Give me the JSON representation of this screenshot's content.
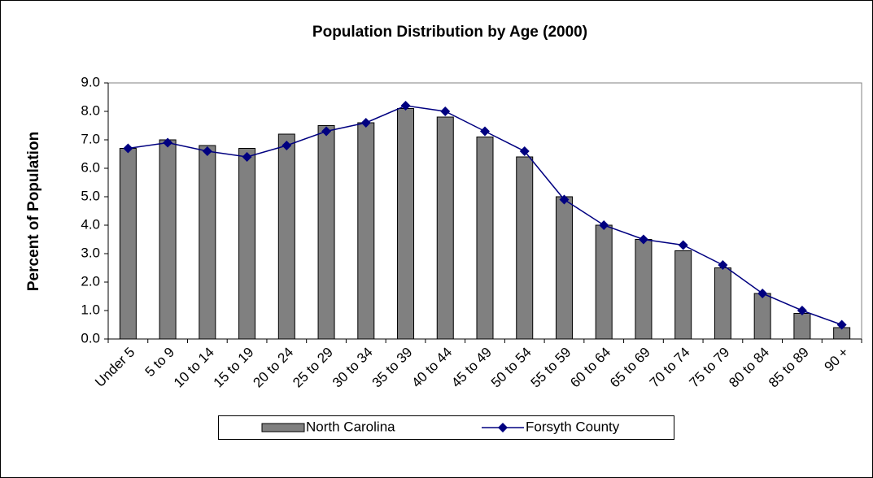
{
  "chart_data": {
    "type": "bar_line",
    "title": "Population Distribution by Age (2000)",
    "y_label": "Percent of Population",
    "categories": [
      "Under 5",
      "5 to 9",
      "10 to 14",
      "15 to 19",
      "20 to 24",
      "25 to 29",
      "30 to 34",
      "35 to 39",
      "40 to 44",
      "45 to 49",
      "50 to 54",
      "55 to 59",
      "60 to 64",
      "65 to 69",
      "70 to 74",
      "75 to 79",
      "80 to 84",
      "85 to 89",
      "90 +"
    ],
    "series": [
      {
        "name": "North Carolina",
        "type": "bar",
        "color": "#808080",
        "values": [
          6.7,
          7.0,
          6.8,
          6.7,
          7.2,
          7.5,
          7.6,
          8.1,
          7.8,
          7.1,
          6.4,
          5.0,
          4.0,
          3.5,
          3.1,
          2.5,
          1.6,
          0.9,
          0.4
        ]
      },
      {
        "name": "Forsyth County",
        "type": "line",
        "color": "#000080",
        "values": [
          6.7,
          6.9,
          6.6,
          6.4,
          6.8,
          7.3,
          7.6,
          8.2,
          8.0,
          7.3,
          6.6,
          4.9,
          4.0,
          3.5,
          3.3,
          2.6,
          1.6,
          1.0,
          0.5
        ]
      }
    ],
    "ylim": [
      0,
      9
    ],
    "yticks": [
      {
        "value": 0,
        "label": "0.0"
      },
      {
        "value": 1,
        "label": "1.0"
      },
      {
        "value": 2,
        "label": "2.0"
      },
      {
        "value": 3,
        "label": "3.0"
      },
      {
        "value": 4,
        "label": "4.0"
      },
      {
        "value": 5,
        "label": "5.0"
      },
      {
        "value": 6,
        "label": "6.0"
      },
      {
        "value": 7,
        "label": "7.0"
      },
      {
        "value": 8,
        "label": "8.0"
      },
      {
        "value": 9,
        "label": "9.0"
      }
    ],
    "legend": "bottom"
  }
}
